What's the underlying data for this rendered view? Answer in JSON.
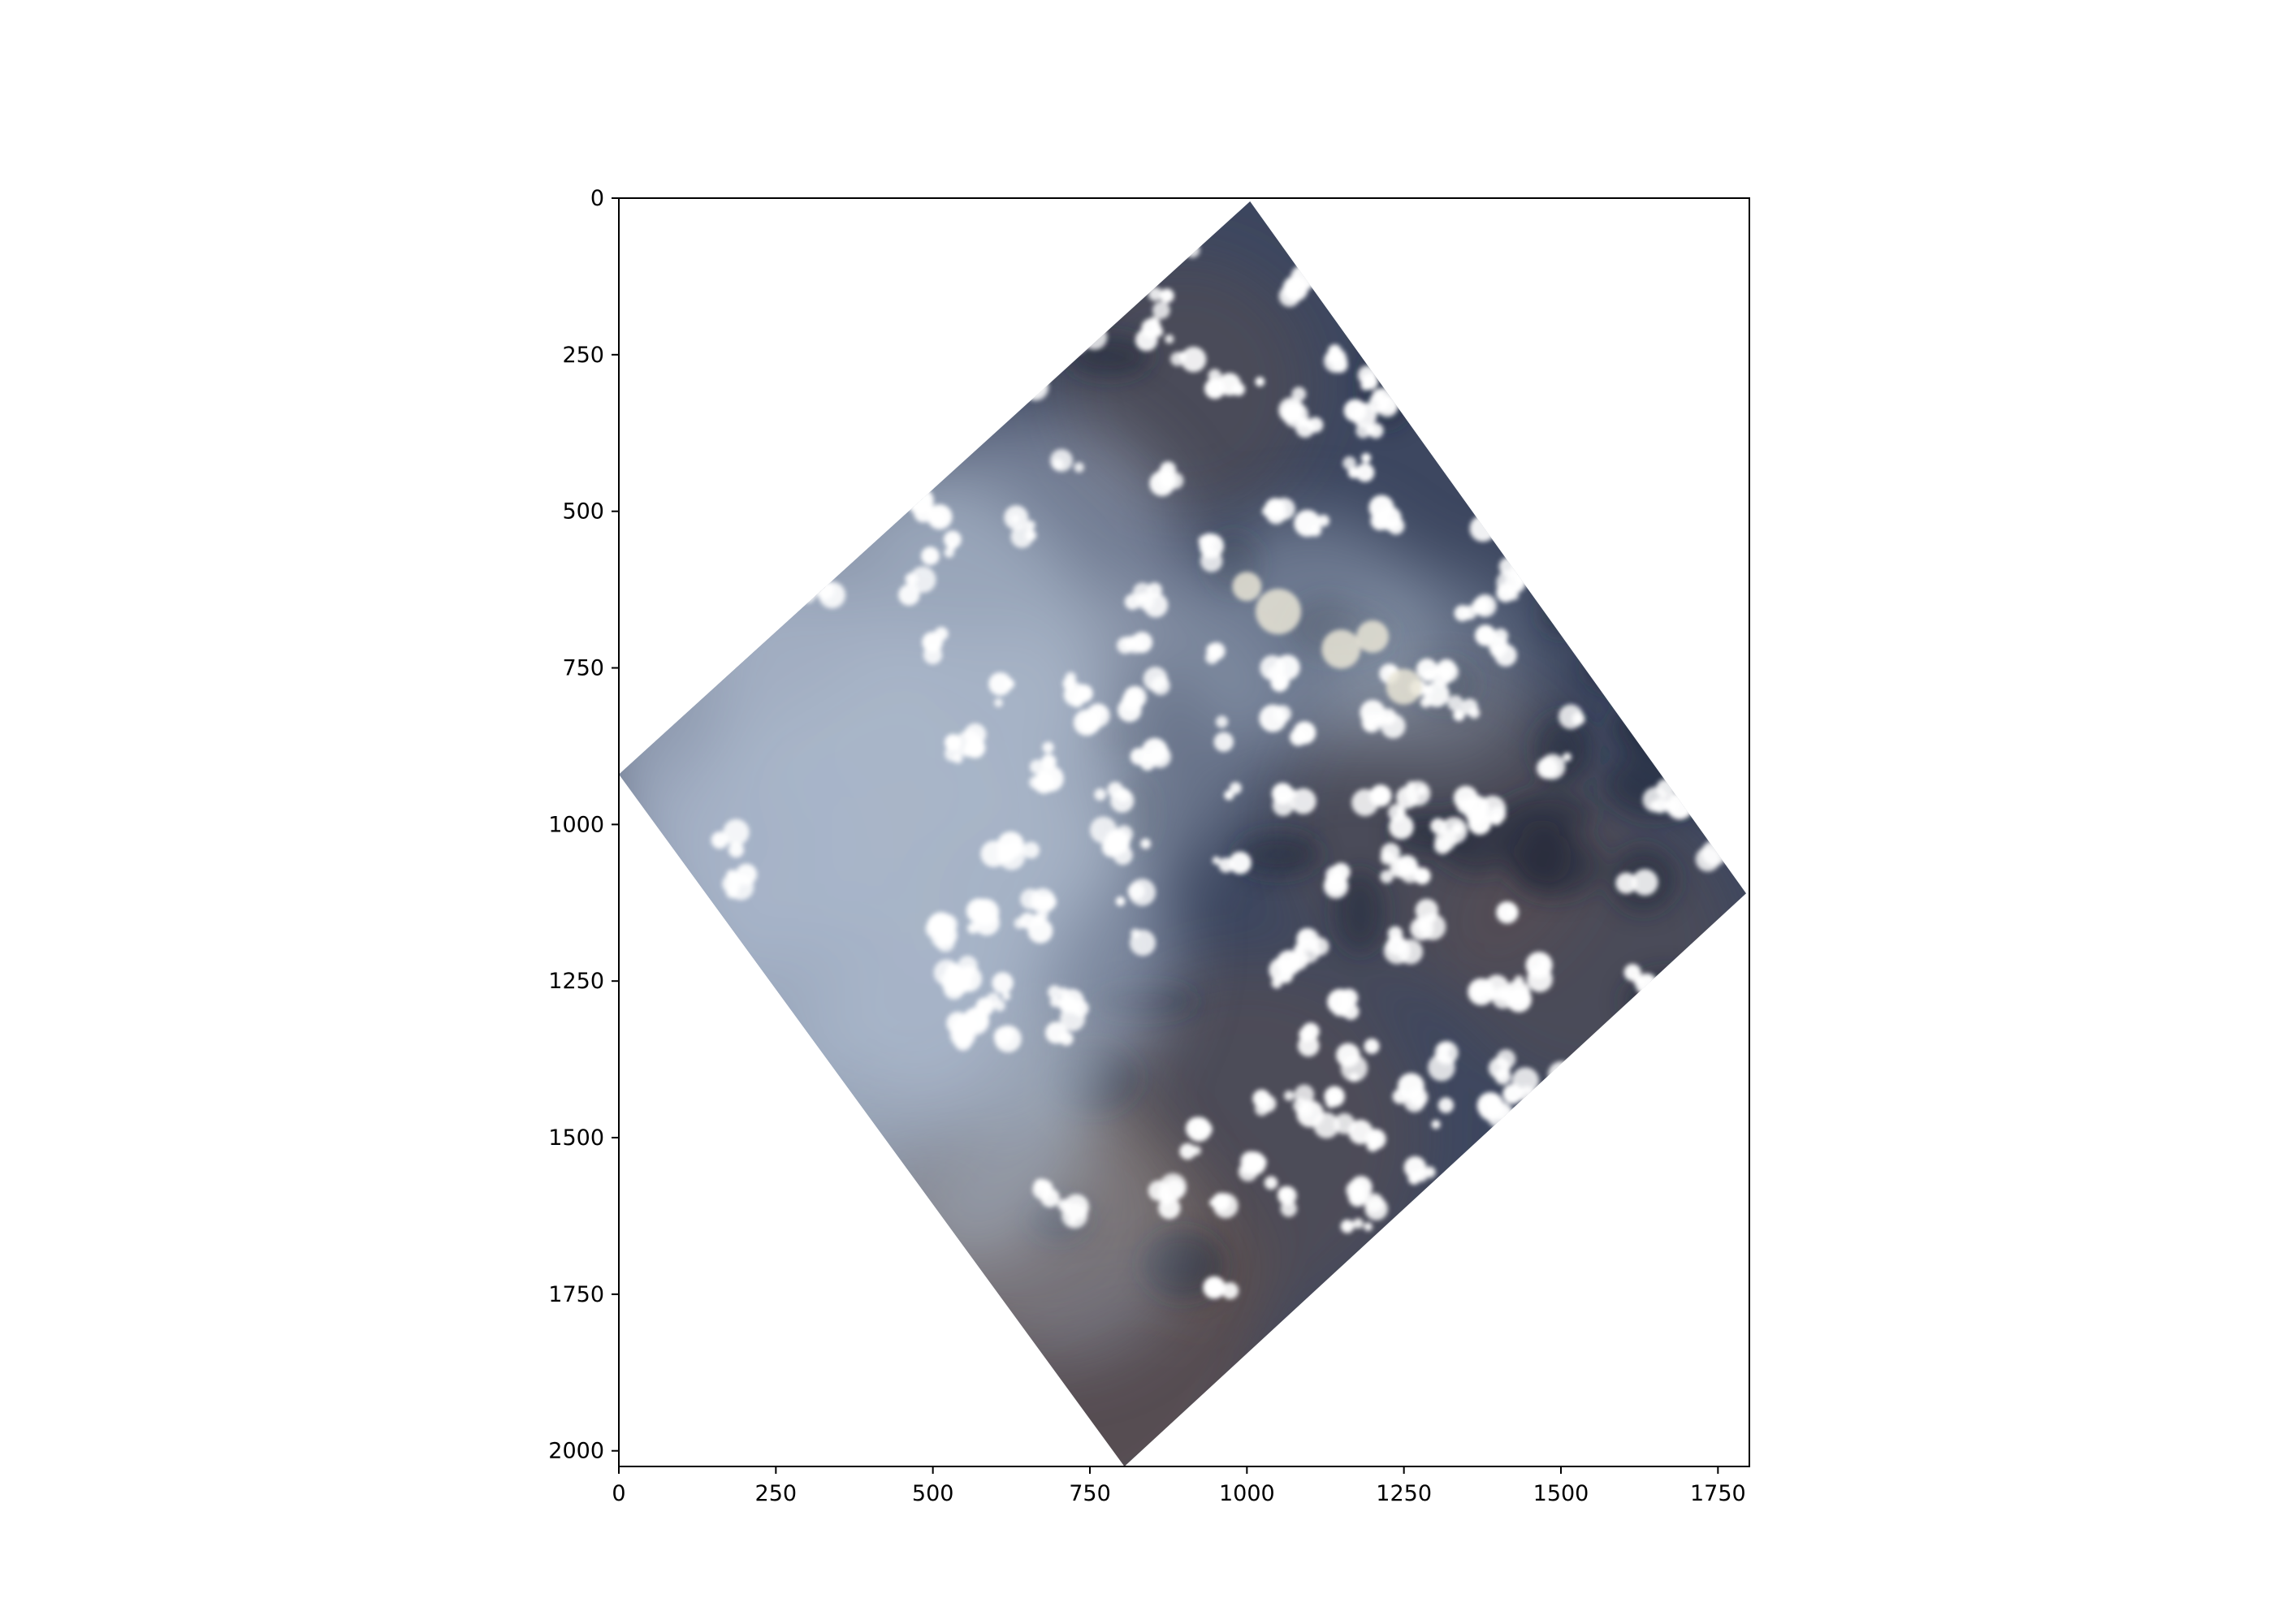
{
  "figure": {
    "kind": "satellite-scene-raster",
    "x_ticks": [
      "0",
      "250",
      "500",
      "750",
      "1000",
      "1250",
      "1500",
      "1750"
    ],
    "y_ticks": [
      "0",
      "250",
      "500",
      "750",
      "1000",
      "1250",
      "1500",
      "1750",
      "2000"
    ],
    "x_range": [
      0,
      1800
    ],
    "y_range": [
      2025,
      0
    ],
    "scene_corners": [
      [
        1005,
        5
      ],
      [
        1795,
        1110
      ],
      [
        805,
        2025
      ],
      [
        0,
        920
      ]
    ],
    "colors": {
      "scene_base": "#3d4760",
      "haze": "#a9b6c9",
      "cloud": "#ffffff",
      "shadow": "#1f2738",
      "soil": "#6b5448",
      "axis": "#000000"
    }
  }
}
